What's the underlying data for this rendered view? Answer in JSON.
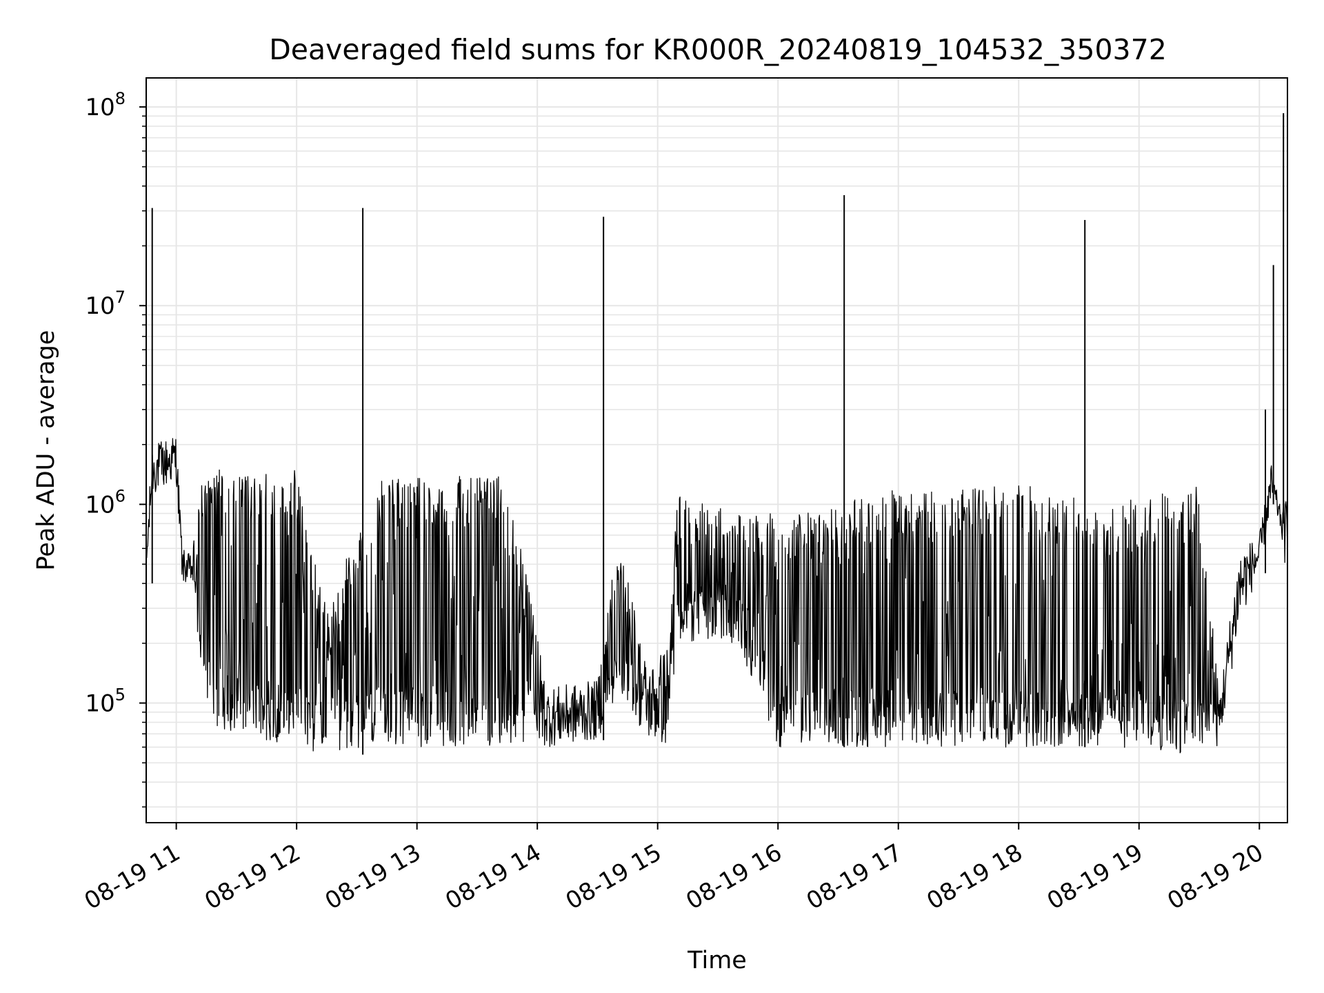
{
  "chart_data": {
    "type": "line",
    "title": "Deaveraged field sums for KR000R_20240819_104532_350372",
    "xlabel": "Time",
    "ylabel": "Peak ADU - average",
    "yscale": "log",
    "grid": true,
    "line_color": "#000000",
    "grid_color": "#e6e6e6",
    "xlim": [
      "2024-08-19 10:45",
      "2024-08-19 20:14"
    ],
    "ylim": [
      25000,
      140000000
    ],
    "x_ticks": [
      {
        "at": "2024-08-19 11:00",
        "label": "08-19 11"
      },
      {
        "at": "2024-08-19 12:00",
        "label": "08-19 12"
      },
      {
        "at": "2024-08-19 13:00",
        "label": "08-19 13"
      },
      {
        "at": "2024-08-19 14:00",
        "label": "08-19 14"
      },
      {
        "at": "2024-08-19 15:00",
        "label": "08-19 15"
      },
      {
        "at": "2024-08-19 16:00",
        "label": "08-19 16"
      },
      {
        "at": "2024-08-19 17:00",
        "label": "08-19 17"
      },
      {
        "at": "2024-08-19 18:00",
        "label": "08-19 18"
      },
      {
        "at": "2024-08-19 19:00",
        "label": "08-19 19"
      },
      {
        "at": "2024-08-19 20:00",
        "label": "08-19 20"
      }
    ],
    "y_ticks": [
      {
        "value": 100000,
        "base": "10",
        "exp": "5"
      },
      {
        "value": 1000000,
        "base": "10",
        "exp": "6"
      },
      {
        "value": 10000000,
        "base": "10",
        "exp": "7"
      },
      {
        "value": 100000000,
        "base": "10",
        "exp": "8"
      }
    ],
    "envelope": [
      {
        "t": "2024-08-19 10:45",
        "low": 400000,
        "high": 600000
      },
      {
        "t": "2024-08-19 10:48",
        "low": 1100000,
        "high": 2000000
      },
      {
        "t": "2024-08-19 11:00",
        "low": 1300000,
        "high": 2300000
      },
      {
        "t": "2024-08-19 11:03",
        "low": 400000,
        "high": 600000
      },
      {
        "t": "2024-08-19 11:08",
        "low": 400000,
        "high": 550000
      },
      {
        "t": "2024-08-19 11:12",
        "low": 150000,
        "high": 1400000
      },
      {
        "t": "2024-08-19 11:18",
        "low": 75000,
        "high": 1500000
      },
      {
        "t": "2024-08-19 12:00",
        "low": 60000,
        "high": 1500000
      },
      {
        "t": "2024-08-19 12:15",
        "low": 55000,
        "high": 300000
      },
      {
        "t": "2024-08-19 12:40",
        "low": 60000,
        "high": 1300000
      },
      {
        "t": "2024-08-19 13:00",
        "low": 60000,
        "high": 1400000
      },
      {
        "t": "2024-08-19 13:45",
        "low": 60000,
        "high": 1400000
      },
      {
        "t": "2024-08-19 14:05",
        "low": 60000,
        "high": 120000
      },
      {
        "t": "2024-08-19 14:30",
        "low": 65000,
        "high": 130000
      },
      {
        "t": "2024-08-19 14:40",
        "low": 110000,
        "high": 700000
      },
      {
        "t": "2024-08-19 14:55",
        "low": 65000,
        "high": 150000
      },
      {
        "t": "2024-08-19 15:05",
        "low": 60000,
        "high": 200000
      },
      {
        "t": "2024-08-19 15:10",
        "low": 200000,
        "high": 1100000
      },
      {
        "t": "2024-08-19 15:40",
        "low": 200000,
        "high": 900000
      },
      {
        "t": "2024-08-19 16:00",
        "low": 60000,
        "high": 900000
      },
      {
        "t": "2024-08-19 17:00",
        "low": 60000,
        "high": 1200000
      },
      {
        "t": "2024-08-19 18:00",
        "low": 60000,
        "high": 1300000
      },
      {
        "t": "2024-08-19 18:45",
        "low": 60000,
        "high": 1000000
      },
      {
        "t": "2024-08-19 19:30",
        "low": 55000,
        "high": 1300000
      },
      {
        "t": "2024-08-19 19:40",
        "low": 60000,
        "high": 110000
      },
      {
        "t": "2024-08-19 19:50",
        "low": 250000,
        "high": 600000
      },
      {
        "t": "2024-08-19 20:00",
        "low": 450000,
        "high": 700000
      },
      {
        "t": "2024-08-19 20:06",
        "low": 1000000,
        "high": 1600000
      },
      {
        "t": "2024-08-19 20:10",
        "low": 800000,
        "high": 1000000
      },
      {
        "t": "2024-08-19 20:14",
        "low": 400000,
        "high": 1100000
      }
    ],
    "spikes": [
      {
        "t": "2024-08-19 10:48",
        "value": 31000000
      },
      {
        "t": "2024-08-19 12:33",
        "value": 31000000
      },
      {
        "t": "2024-08-19 14:33",
        "value": 28000000
      },
      {
        "t": "2024-08-19 16:33",
        "value": 36000000
      },
      {
        "t": "2024-08-19 18:33",
        "value": 27000000
      },
      {
        "t": "2024-08-19 20:03",
        "value": 3000000
      },
      {
        "t": "2024-08-19 20:07",
        "value": 16000000
      },
      {
        "t": "2024-08-19 20:12",
        "value": 93000000
      }
    ]
  }
}
